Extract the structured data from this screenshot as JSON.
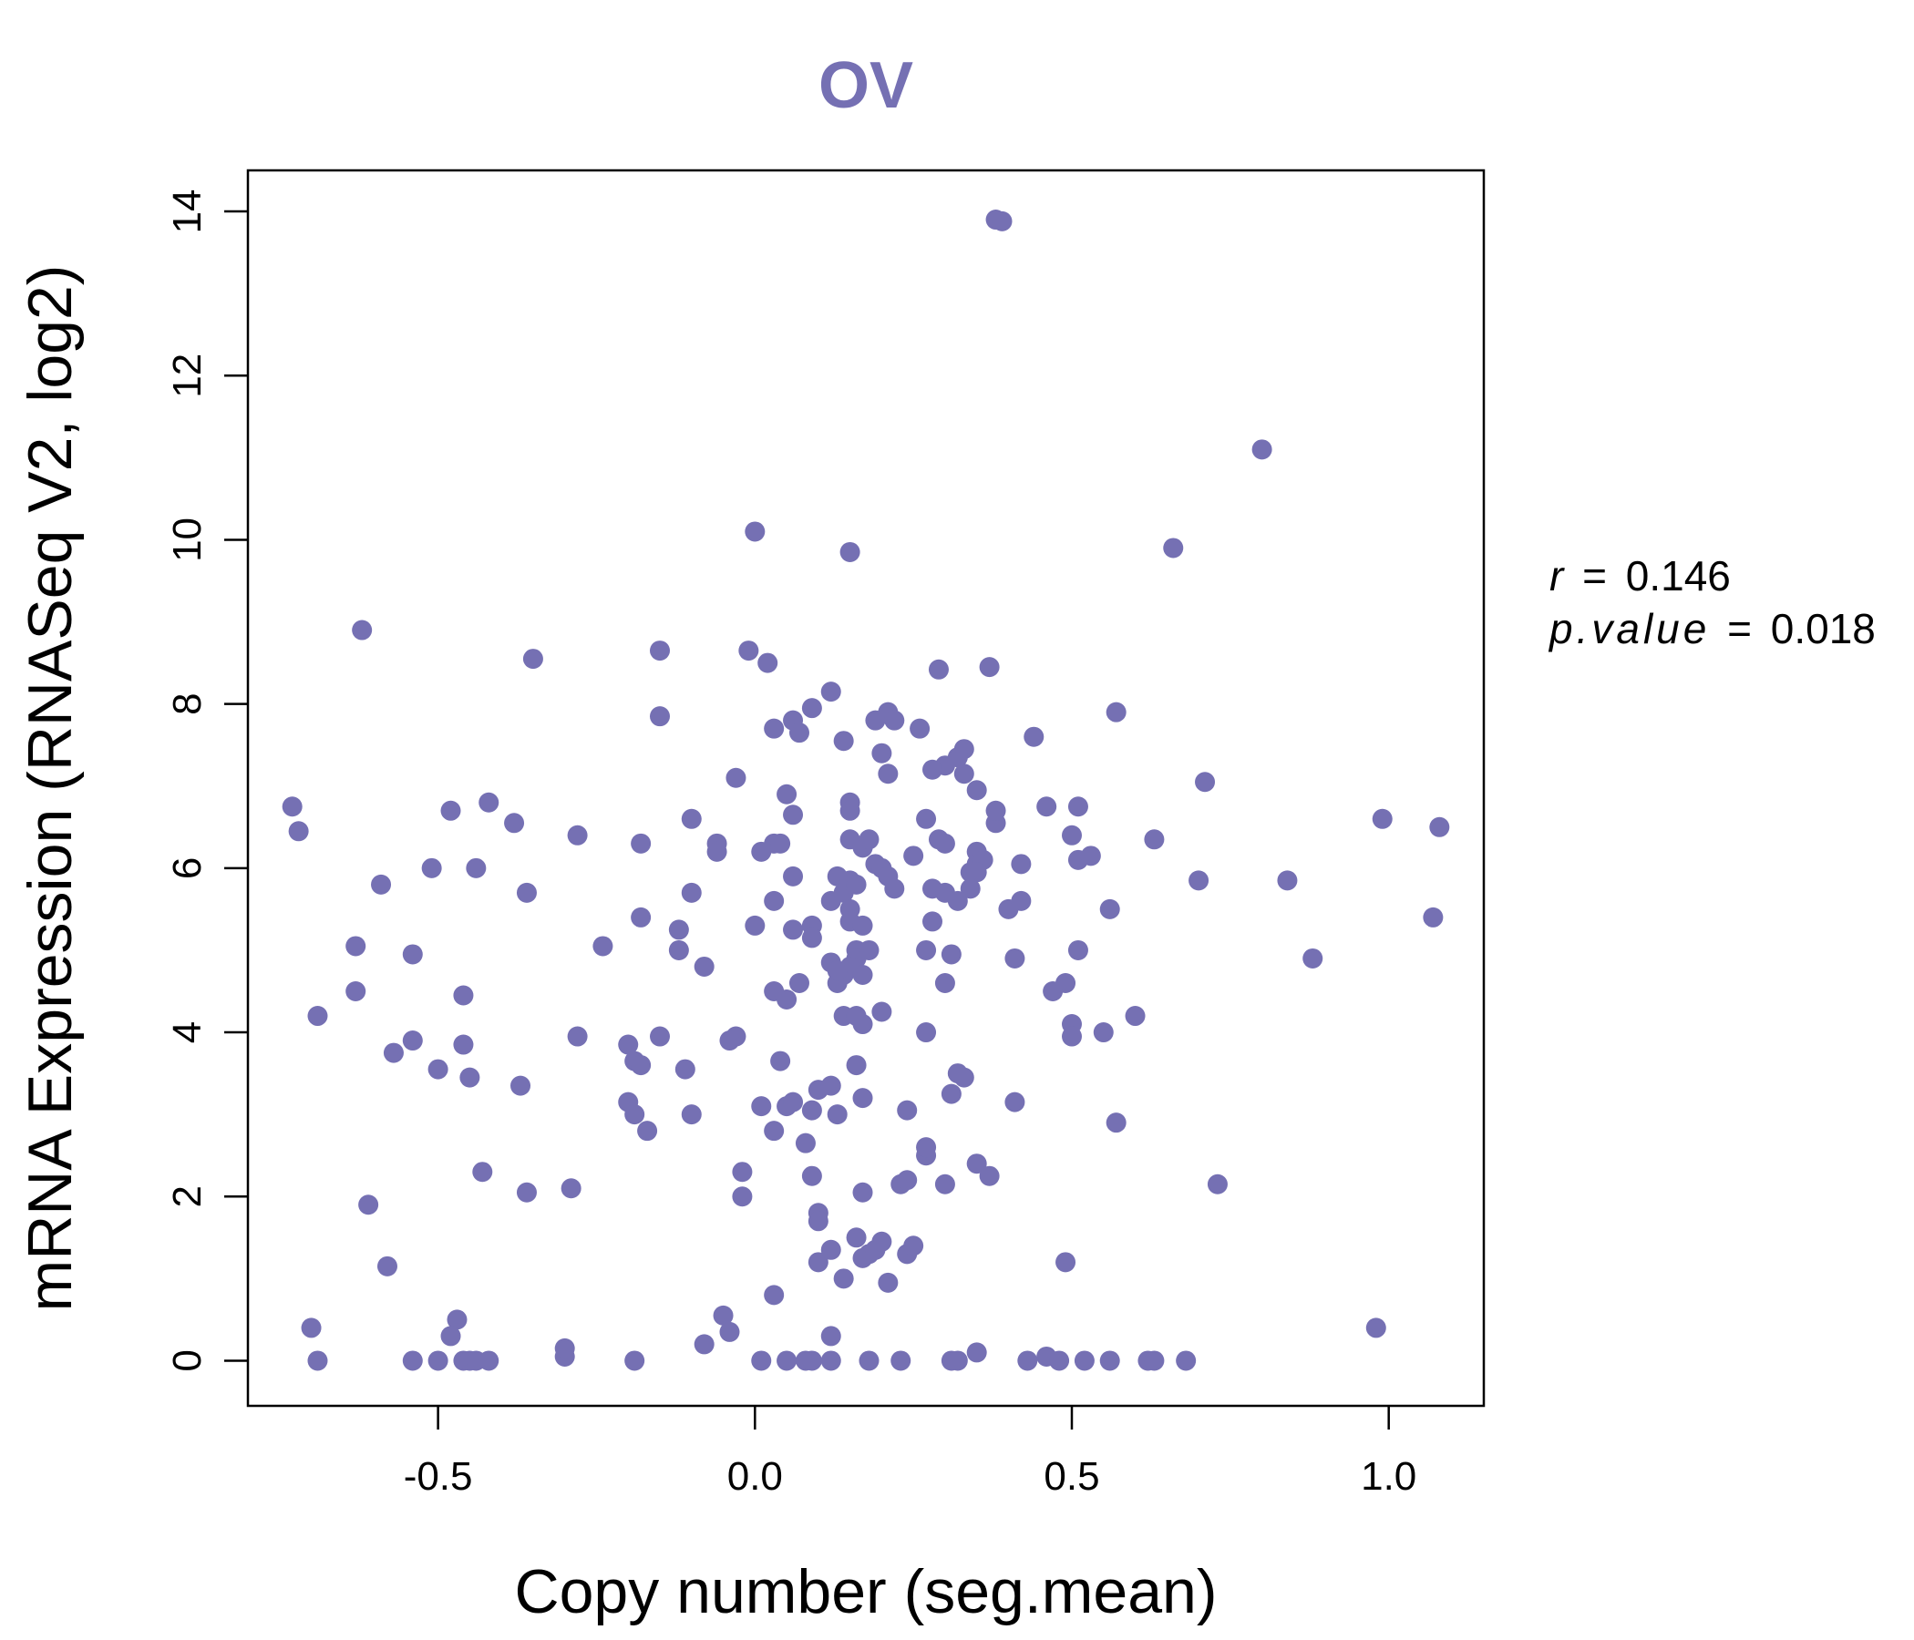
{
  "chart_data": {
    "type": "scatter",
    "title": "OV",
    "xlabel": "Copy number (seg.mean)",
    "ylabel": "mRNA Expression (RNASeq V2, log2)",
    "xlim": [
      -0.8,
      1.15
    ],
    "ylim": [
      -0.55,
      14.5
    ],
    "xticks": [
      -0.5,
      0.0,
      0.5,
      1.0
    ],
    "xtick_labels": [
      "-0.5",
      "0.0",
      "0.5",
      "1.0"
    ],
    "yticks": [
      0,
      2,
      4,
      6,
      8,
      10,
      12,
      14
    ],
    "ytick_labels": [
      "0",
      "2",
      "4",
      "6",
      "8",
      "10",
      "12",
      "14"
    ],
    "grid": false,
    "point_color": "#7570b3",
    "annotations": {
      "r_label": "r",
      "r_value": "0.146",
      "p_label": "p.value",
      "p_value": "0.018",
      "equals": "="
    },
    "points": [
      [
        0.38,
        13.9
      ],
      [
        0.39,
        13.88
      ],
      [
        0.8,
        11.1
      ],
      [
        0.0,
        10.1
      ],
      [
        0.15,
        9.85
      ],
      [
        0.66,
        9.9
      ],
      [
        -0.62,
        8.9
      ],
      [
        -0.35,
        8.55
      ],
      [
        -0.15,
        8.65
      ],
      [
        -0.01,
        8.65
      ],
      [
        0.02,
        8.5
      ],
      [
        0.29,
        8.42
      ],
      [
        0.37,
        8.45
      ],
      [
        0.12,
        8.15
      ],
      [
        0.09,
        7.95
      ],
      [
        -0.15,
        7.85
      ],
      [
        0.06,
        7.8
      ],
      [
        0.03,
        7.7
      ],
      [
        0.07,
        7.65
      ],
      [
        0.14,
        7.55
      ],
      [
        0.19,
        7.8
      ],
      [
        0.21,
        7.9
      ],
      [
        0.22,
        7.8
      ],
      [
        0.26,
        7.7
      ],
      [
        0.44,
        7.6
      ],
      [
        0.57,
        7.9
      ],
      [
        0.2,
        7.4
      ],
      [
        0.33,
        7.45
      ],
      [
        0.32,
        7.35
      ],
      [
        0.3,
        7.25
      ],
      [
        0.28,
        7.2
      ],
      [
        0.21,
        7.15
      ],
      [
        0.33,
        7.15
      ],
      [
        0.71,
        7.05
      ],
      [
        -0.03,
        7.1
      ],
      [
        0.05,
        6.9
      ],
      [
        0.35,
        6.95
      ],
      [
        -0.73,
        6.75
      ],
      [
        -0.72,
        6.45
      ],
      [
        -0.48,
        6.7
      ],
      [
        -0.42,
        6.8
      ],
      [
        -0.38,
        6.55
      ],
      [
        -0.28,
        6.4
      ],
      [
        -0.1,
        6.6
      ],
      [
        -0.06,
        6.3
      ],
      [
        -0.06,
        6.2
      ],
      [
        0.01,
        6.2
      ],
      [
        0.03,
        6.3
      ],
      [
        0.04,
        6.3
      ],
      [
        0.06,
        6.65
      ],
      [
        0.15,
        6.8
      ],
      [
        0.15,
        6.7
      ],
      [
        0.15,
        6.35
      ],
      [
        0.17,
        6.25
      ],
      [
        0.18,
        6.35
      ],
      [
        0.19,
        6.05
      ],
      [
        0.2,
        6.0
      ],
      [
        0.21,
        5.9
      ],
      [
        0.22,
        5.75
      ],
      [
        0.25,
        6.15
      ],
      [
        0.27,
        6.6
      ],
      [
        0.29,
        6.35
      ],
      [
        0.3,
        6.3
      ],
      [
        0.35,
        6.2
      ],
      [
        0.35,
        6.05
      ],
      [
        0.36,
        6.1
      ],
      [
        0.34,
        5.95
      ],
      [
        0.35,
        5.95
      ],
      [
        0.38,
        6.55
      ],
      [
        0.38,
        6.7
      ],
      [
        0.42,
        6.05
      ],
      [
        0.46,
        6.75
      ],
      [
        0.5,
        6.4
      ],
      [
        0.51,
        6.75
      ],
      [
        0.51,
        6.1
      ],
      [
        0.53,
        6.15
      ],
      [
        0.63,
        6.35
      ],
      [
        0.99,
        6.6
      ],
      [
        1.08,
        6.5
      ],
      [
        -0.59,
        5.8
      ],
      [
        -0.51,
        6.0
      ],
      [
        -0.44,
        6.0
      ],
      [
        -0.36,
        5.7
      ],
      [
        -0.18,
        5.4
      ],
      [
        -0.18,
        6.3
      ],
      [
        -0.12,
        5.25
      ],
      [
        -0.12,
        5.0
      ],
      [
        -0.1,
        5.7
      ],
      [
        0.0,
        5.3
      ],
      [
        0.03,
        5.6
      ],
      [
        0.06,
        5.9
      ],
      [
        0.06,
        5.25
      ],
      [
        0.09,
        5.3
      ],
      [
        0.09,
        5.15
      ],
      [
        0.12,
        5.6
      ],
      [
        0.13,
        5.9
      ],
      [
        0.14,
        5.7
      ],
      [
        0.15,
        5.85
      ],
      [
        0.15,
        5.5
      ],
      [
        0.16,
        5.8
      ],
      [
        0.15,
        5.35
      ],
      [
        0.17,
        5.3
      ],
      [
        0.16,
        5.0
      ],
      [
        0.16,
        4.9
      ],
      [
        0.15,
        4.8
      ],
      [
        0.14,
        4.7
      ],
      [
        0.13,
        4.6
      ],
      [
        0.12,
        4.85
      ],
      [
        0.13,
        4.75
      ],
      [
        0.17,
        4.7
      ],
      [
        0.18,
        5.0
      ],
      [
        0.14,
        4.2
      ],
      [
        0.16,
        4.2
      ],
      [
        0.2,
        4.25
      ],
      [
        0.17,
        4.1
      ],
      [
        0.28,
        5.75
      ],
      [
        0.3,
        5.7
      ],
      [
        0.32,
        5.6
      ],
      [
        0.34,
        5.75
      ],
      [
        0.28,
        5.35
      ],
      [
        0.27,
        5.0
      ],
      [
        0.31,
        4.95
      ],
      [
        0.3,
        4.6
      ],
      [
        0.4,
        5.5
      ],
      [
        0.42,
        5.6
      ],
      [
        0.41,
        4.9
      ],
      [
        0.49,
        4.6
      ],
      [
        0.47,
        4.5
      ],
      [
        0.51,
        5.0
      ],
      [
        0.56,
        5.5
      ],
      [
        0.7,
        5.85
      ],
      [
        0.84,
        5.85
      ],
      [
        0.88,
        4.9
      ],
      [
        1.07,
        5.4
      ],
      [
        -0.63,
        5.05
      ],
      [
        -0.54,
        4.95
      ],
      [
        -0.63,
        4.5
      ],
      [
        -0.46,
        4.45
      ],
      [
        -0.69,
        4.2
      ],
      [
        -0.54,
        3.9
      ],
      [
        -0.57,
        3.75
      ],
      [
        -0.5,
        3.55
      ],
      [
        -0.46,
        3.85
      ],
      [
        -0.45,
        3.45
      ],
      [
        -0.37,
        3.35
      ],
      [
        -0.24,
        5.05
      ],
      [
        -0.08,
        4.8
      ],
      [
        0.03,
        4.5
      ],
      [
        0.05,
        4.4
      ],
      [
        0.07,
        4.6
      ],
      [
        -0.03,
        3.95
      ],
      [
        -0.04,
        3.9
      ],
      [
        -0.28,
        3.95
      ],
      [
        -0.2,
        3.85
      ],
      [
        -0.19,
        3.65
      ],
      [
        -0.18,
        3.6
      ],
      [
        -0.15,
        3.95
      ],
      [
        -0.11,
        3.55
      ],
      [
        0.27,
        4.0
      ],
      [
        0.32,
        3.5
      ],
      [
        0.33,
        3.45
      ],
      [
        0.5,
        4.1
      ],
      [
        0.5,
        3.95
      ],
      [
        0.55,
        4.0
      ],
      [
        0.6,
        4.2
      ],
      [
        -0.2,
        3.15
      ],
      [
        -0.19,
        3.0
      ],
      [
        -0.17,
        2.8
      ],
      [
        -0.1,
        3.0
      ],
      [
        0.01,
        3.1
      ],
      [
        0.03,
        2.8
      ],
      [
        0.04,
        3.65
      ],
      [
        0.05,
        3.1
      ],
      [
        0.06,
        3.15
      ],
      [
        0.09,
        3.05
      ],
      [
        0.1,
        3.3
      ],
      [
        0.12,
        3.35
      ],
      [
        0.13,
        3.0
      ],
      [
        0.16,
        3.6
      ],
      [
        0.17,
        3.2
      ],
      [
        0.24,
        3.05
      ],
      [
        0.31,
        3.25
      ],
      [
        0.41,
        3.15
      ],
      [
        0.57,
        2.9
      ],
      [
        -0.43,
        2.3
      ],
      [
        -0.36,
        2.05
      ],
      [
        -0.29,
        2.1
      ],
      [
        -0.61,
        1.9
      ],
      [
        -0.58,
        1.15
      ],
      [
        -0.02,
        2.3
      ],
      [
        -0.02,
        2.0
      ],
      [
        0.08,
        2.65
      ],
      [
        0.09,
        2.25
      ],
      [
        0.1,
        1.8
      ],
      [
        0.1,
        1.7
      ],
      [
        0.17,
        2.05
      ],
      [
        0.23,
        2.15
      ],
      [
        0.24,
        2.2
      ],
      [
        0.27,
        2.5
      ],
      [
        0.27,
        2.6
      ],
      [
        0.3,
        2.15
      ],
      [
        0.35,
        2.4
      ],
      [
        0.37,
        2.25
      ],
      [
        0.73,
        2.15
      ],
      [
        0.1,
        1.2
      ],
      [
        0.12,
        1.35
      ],
      [
        0.14,
        1.0
      ],
      [
        0.16,
        1.5
      ],
      [
        0.17,
        1.25
      ],
      [
        0.18,
        1.3
      ],
      [
        0.19,
        1.35
      ],
      [
        0.2,
        1.45
      ],
      [
        0.21,
        0.95
      ],
      [
        0.24,
        1.3
      ],
      [
        0.25,
        1.4
      ],
      [
        0.49,
        1.2
      ],
      [
        0.03,
        0.8
      ],
      [
        -0.05,
        0.55
      ],
      [
        -0.04,
        0.35
      ],
      [
        -0.08,
        0.2
      ],
      [
        0.12,
        0.3
      ],
      [
        -0.7,
        0.4
      ],
      [
        -0.47,
        0.5
      ],
      [
        -0.48,
        0.3
      ],
      [
        0.35,
        0.1
      ],
      [
        0.98,
        0.4
      ],
      [
        -0.69,
        0.0
      ],
      [
        -0.54,
        0.0
      ],
      [
        -0.5,
        0.0
      ],
      [
        -0.46,
        0.0
      ],
      [
        -0.45,
        0.0
      ],
      [
        -0.44,
        0.0
      ],
      [
        -0.42,
        0.0
      ],
      [
        -0.3,
        0.05
      ],
      [
        -0.3,
        0.15
      ],
      [
        -0.19,
        0.0
      ],
      [
        0.01,
        0.0
      ],
      [
        0.05,
        0.0
      ],
      [
        0.08,
        0.0
      ],
      [
        0.09,
        0.0
      ],
      [
        0.12,
        0.0
      ],
      [
        0.18,
        0.0
      ],
      [
        0.23,
        0.0
      ],
      [
        0.31,
        0.0
      ],
      [
        0.32,
        0.0
      ],
      [
        0.43,
        0.0
      ],
      [
        0.46,
        0.05
      ],
      [
        0.48,
        0.0
      ],
      [
        0.52,
        0.0
      ],
      [
        0.56,
        0.0
      ],
      [
        0.62,
        0.0
      ],
      [
        0.63,
        0.0
      ],
      [
        0.68,
        0.0
      ]
    ]
  }
}
